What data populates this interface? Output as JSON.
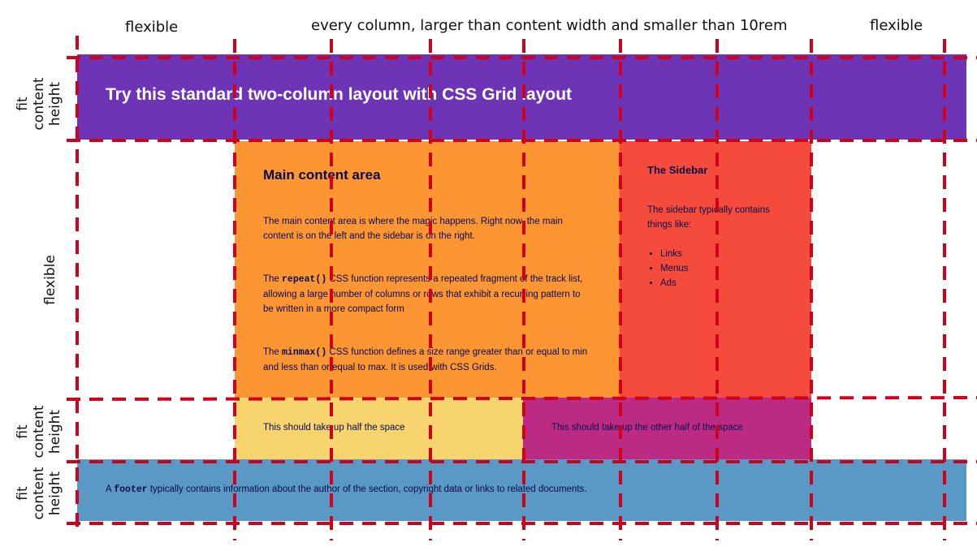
{
  "annotations": {
    "top_left": "flexible",
    "top_middle": "every column, larger than content width and smaller than 10rem",
    "top_right": "flexible",
    "row_header": [
      "fit",
      "content",
      "height"
    ],
    "row_main": "flexible",
    "row_halves": [
      "fit",
      "content",
      "height"
    ],
    "row_footer": [
      "fit",
      "content",
      "height"
    ]
  },
  "header": {
    "title": "Try this standard two-column layout with CSS Grid layout"
  },
  "main": {
    "heading": "Main content area",
    "para1": "The main content area is where the magic happens. Right now, the main content is on the left and the sidebar is on the right.",
    "para2_prefix": "The ",
    "para2_code": "repeat()",
    "para2_suffix": " CSS function represents a repeated fragment of the track list, allowing a large number of columns or rows that exhibit a recurring pattern to be written in a more compact form",
    "para3_prefix": "The ",
    "para3_code": "minmax()",
    "para3_suffix": " CSS function defines a size range greater than or equal to min and less than or equal to max. It is used with CSS Grids."
  },
  "sidebar": {
    "heading": "The Sidebar",
    "text": "The sidebar typically contains things like:",
    "items": [
      "Links",
      "Menus",
      "Ads"
    ]
  },
  "halves": {
    "left": "This should take up half the space",
    "right": "This should take up the other half of the space"
  },
  "footer": {
    "prefix": "A ",
    "code": "footer",
    "suffix": " typically contains information about the author of the section, copyright data or links to related documents."
  },
  "colors": {
    "header": "#6d35b5",
    "main": "#fb9632",
    "sidebar": "#f54b3c",
    "half_left": "#f8d46e",
    "half_right": "#bb2a83",
    "footer": "#5a98c5",
    "gridline": "#d0021b"
  }
}
